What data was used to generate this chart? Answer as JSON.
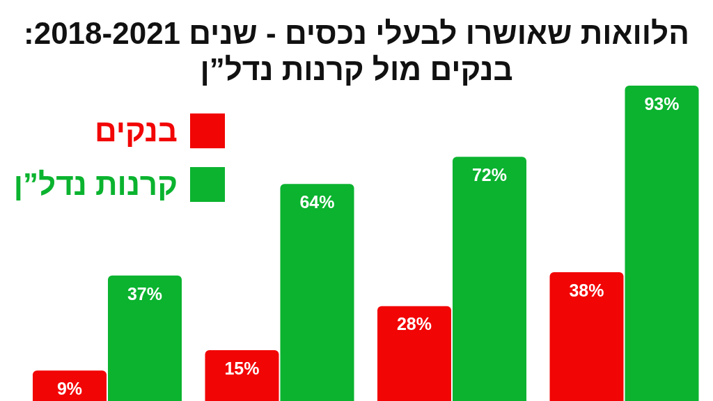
{
  "chart_data": {
    "type": "bar",
    "title": "הלוואות שאושרו לבעלי נכסים - שנים 2018-2021:",
    "subtitle": "בנקים מול קרנות נדל”ן",
    "categories": [
      null,
      null,
      null,
      null
    ],
    "series": [
      {
        "name": "בנקים",
        "color": "#f20505",
        "values": [
          9,
          15,
          28,
          38
        ],
        "value_labels": [
          "9%",
          "15%",
          "28%",
          "38%"
        ]
      },
      {
        "name": "קרנות נדל”ן",
        "color": "#0bb32f",
        "values": [
          37,
          64,
          72,
          93
        ],
        "value_labels": [
          "37%",
          "64%",
          "72%",
          "93%"
        ]
      }
    ],
    "tick_labels": false,
    "grid": false,
    "legend": "top left"
  }
}
